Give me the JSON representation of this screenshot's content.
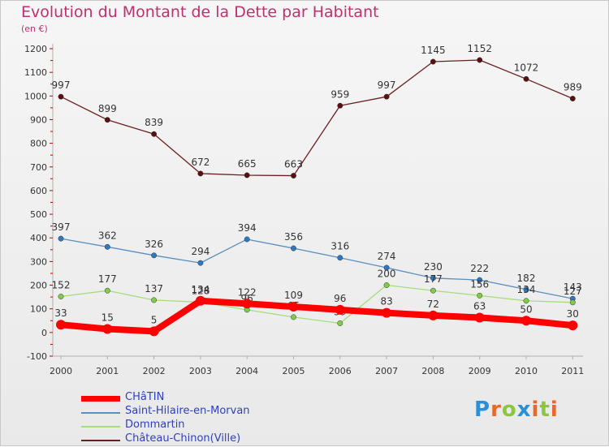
{
  "title": "Evolution du Montant de la Dette par Habitant",
  "subtitle": "(en €)",
  "logo": [
    "P",
    "r",
    "o",
    "x",
    "i",
    "t",
    "i"
  ],
  "logo_colors": [
    "#2a8fd6",
    "#e7692a",
    "#8cc63e",
    "#2a8fd6",
    "#e7692a",
    "#8cc63e",
    "#e7692a"
  ],
  "chart_data": {
    "type": "line",
    "x": [
      "2000",
      "2001",
      "2002",
      "2003",
      "2004",
      "2005",
      "2006",
      "2007",
      "2008",
      "2009",
      "2010",
      "2011"
    ],
    "ylim": [
      -100,
      1200
    ],
    "yticks": [
      "-100",
      "0",
      "100",
      "200",
      "300",
      "400",
      "500",
      "600",
      "700",
      "800",
      "900",
      "1000",
      "1100",
      "1200"
    ],
    "grid": false,
    "legend": "bottom-left",
    "series": [
      {
        "name": "Château-Chinon(Ville)",
        "color": "#6b1f1f",
        "dot": "#5a1010",
        "width": 1.3,
        "values": [
          997,
          899,
          839,
          672,
          665,
          663,
          959,
          997,
          1145,
          1152,
          1072,
          989
        ],
        "labels": [
          "997",
          "899",
          "839",
          "672",
          "665",
          "663",
          "959",
          "997",
          "1145",
          "1152",
          "1072",
          "989"
        ]
      },
      {
        "name": "Saint-Hilaire-en-Morvan",
        "color": "#5b8fc2",
        "dot": "#2f78c4",
        "width": 1.3,
        "values": [
          397,
          362,
          326,
          294,
          394,
          356,
          316,
          274,
          230,
          222,
          182,
          143
        ],
        "labels": [
          "397",
          "362",
          "326",
          "294",
          "394",
          "356",
          "316",
          "274",
          "230",
          "222",
          "182",
          "143"
        ]
      },
      {
        "name": "Dommartin",
        "color": "#a6dc7c",
        "dot": "#7fcc4a",
        "width": 1.3,
        "values": [
          152,
          177,
          137,
          128,
          96,
          65,
          39,
          200,
          177,
          156,
          134,
          127
        ],
        "labels": [
          "152",
          "177",
          "137",
          "128",
          "96",
          "65",
          "39",
          "200",
          "177",
          "156",
          "134",
          "127"
        ]
      },
      {
        "name": "CHâTIN",
        "color": "#ff0000",
        "dot": "#ff0000",
        "width": 8,
        "values": [
          33,
          15,
          5,
          134,
          122,
          109,
          96,
          83,
          72,
          63,
          50,
          30
        ],
        "labels": [
          "33",
          "15",
          "5",
          "134",
          "122",
          "109",
          "96",
          "83",
          "72",
          "63",
          "50",
          "30"
        ]
      }
    ],
    "legend_order": [
      "CHâTIN",
      "Saint-Hilaire-en-Morvan",
      "Dommartin",
      "Château-Chinon(Ville)"
    ],
    "legend_text_color": "#2f3fbf"
  }
}
